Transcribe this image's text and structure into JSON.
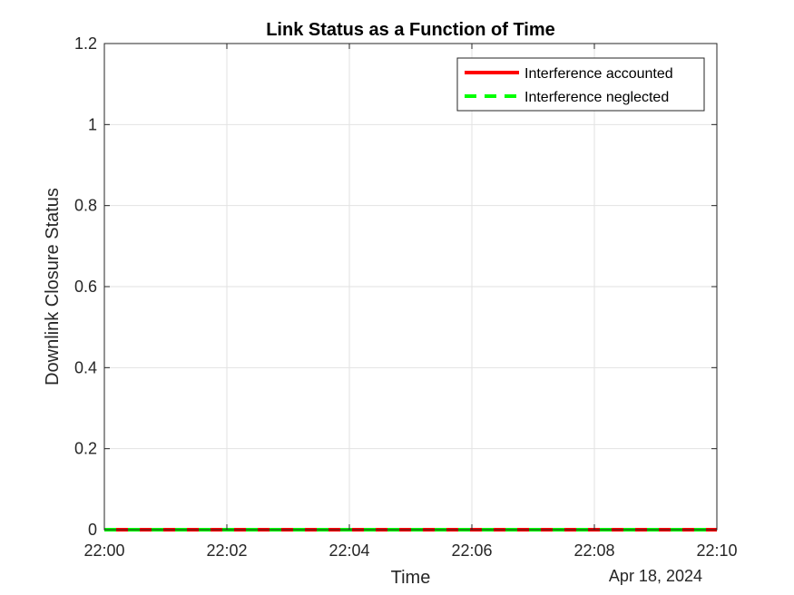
{
  "chart_data": {
    "type": "line",
    "title": "Link Status as a Function of Time",
    "xlabel": "Time",
    "ylabel": "Downlink Closure Status",
    "date_label": "Apr 18, 2024",
    "x_ticks": [
      "22:00",
      "22:02",
      "22:04",
      "22:06",
      "22:08",
      "22:10"
    ],
    "y_ticks": [
      "0",
      "0.2",
      "0.4",
      "0.6",
      "0.8",
      "1",
      "1.2"
    ],
    "xlim": [
      "22:00",
      "22:10"
    ],
    "ylim": [
      0,
      1.2
    ],
    "grid": true,
    "legend_position": "top-right",
    "series": [
      {
        "name": "Interference accounted",
        "color": "#ff0000",
        "line_style": "solid",
        "x": [
          "22:00",
          "22:02",
          "22:04",
          "22:06",
          "22:08",
          "22:10"
        ],
        "y": [
          0,
          0,
          0,
          0,
          0,
          0
        ]
      },
      {
        "name": "Interference neglected",
        "color": "#00ff00",
        "line_style": "dashed",
        "x": [
          "22:00",
          "22:02",
          "22:04",
          "22:06",
          "22:08",
          "22:10"
        ],
        "y": [
          0,
          0,
          0,
          0,
          0,
          0
        ]
      }
    ]
  }
}
